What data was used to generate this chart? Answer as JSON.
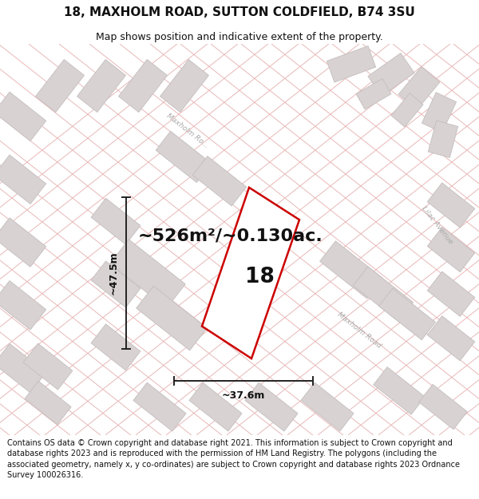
{
  "title": "18, MAXHOLM ROAD, SUTTON COLDFIELD, B74 3SU",
  "subtitle": "Map shows position and indicative extent of the property.",
  "area_text": "~526m²/~0.130ac.",
  "height_label": "~47.5m",
  "width_label": "~37.6m",
  "number_label": "18",
  "footer": "Contains OS data © Crown copyright and database right 2021. This information is subject to Crown copyright and database rights 2023 and is reproduced with the permission of HM Land Registry. The polygons (including the associated geometry, namely x, y co-ordinates) are subject to Crown copyright and database rights 2023 Ordnance Survey 100026316.",
  "map_bg": "#f5f2f2",
  "building_color": "#d8d2d2",
  "building_edge": "#c5bebe",
  "road_line_color": "#e8b8b8",
  "prop_color": "#cc0000",
  "dim_color": "#222222",
  "road_label_color": "#aaaaaa",
  "title_fs": 11,
  "subtitle_fs": 9,
  "area_fs": 16,
  "dim_fs": 9,
  "num_fs": 19,
  "footer_fs": 7.0,
  "road_lw": 0.7,
  "building_lw": 0.6
}
